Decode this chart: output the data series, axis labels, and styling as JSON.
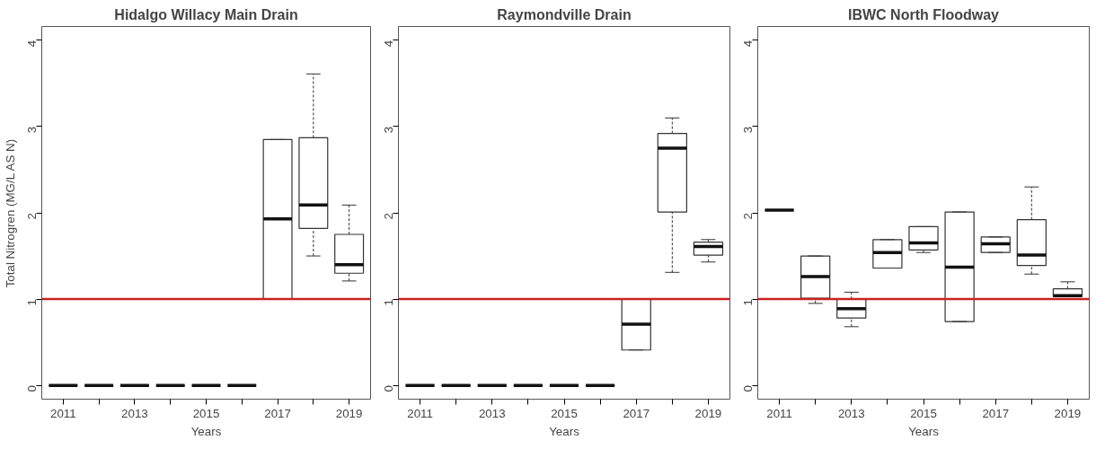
{
  "chart_data": [
    {
      "type": "box",
      "title": "Hidalgo Willacy Main Drain",
      "xlabel": "Years",
      "ylabel": "Total Nitrogren (MG/L AS N)",
      "categories": [
        "2011",
        null,
        "2013",
        null,
        "2015",
        null,
        "2017",
        null,
        "2019"
      ],
      "ylim": [
        -0.16,
        4.16
      ],
      "yticks": [
        0,
        1,
        2,
        3,
        4
      ],
      "grid": false,
      "ref_lines": [
        {
          "axis": "y",
          "value": 1,
          "color": "#cc2222"
        }
      ],
      "boxes": [
        {
          "low": 0,
          "q1": 0,
          "median": 0,
          "q3": 0,
          "high": 0
        },
        {
          "low": 0,
          "q1": 0,
          "median": 0,
          "q3": 0,
          "high": 0
        },
        {
          "low": 0,
          "q1": 0,
          "median": 0,
          "q3": 0,
          "high": 0
        },
        {
          "low": 0,
          "q1": 0,
          "median": 0,
          "q3": 0,
          "high": 0
        },
        {
          "low": 0,
          "q1": 0,
          "median": 0,
          "q3": 0,
          "high": 0
        },
        {
          "low": 0,
          "q1": 0,
          "median": 0,
          "q3": 0,
          "high": 0
        },
        {
          "low": 1.0,
          "q1": 1.0,
          "median": 1.93,
          "q3": 2.85,
          "high": 2.85
        },
        {
          "low": 1.5,
          "q1": 1.82,
          "median": 2.09,
          "q3": 2.87,
          "high": 3.61
        },
        {
          "low": 1.21,
          "q1": 1.3,
          "median": 1.4,
          "q3": 1.75,
          "high": 2.09
        }
      ]
    },
    {
      "type": "box",
      "title": "Raymondville Drain",
      "xlabel": "Years",
      "categories": [
        "2011",
        null,
        "2013",
        null,
        "2015",
        null,
        "2017",
        null,
        "2019"
      ],
      "ylim": [
        -0.16,
        4.16
      ],
      "yticks": [
        0,
        1,
        2,
        3,
        4
      ],
      "grid": false,
      "ref_lines": [
        {
          "axis": "y",
          "value": 1,
          "color": "#cc2222"
        }
      ],
      "boxes": [
        {
          "low": 0,
          "q1": 0,
          "median": 0,
          "q3": 0,
          "high": 0
        },
        {
          "low": 0,
          "q1": 0,
          "median": 0,
          "q3": 0,
          "high": 0
        },
        {
          "low": 0,
          "q1": 0,
          "median": 0,
          "q3": 0,
          "high": 0
        },
        {
          "low": 0,
          "q1": 0,
          "median": 0,
          "q3": 0,
          "high": 0
        },
        {
          "low": 0,
          "q1": 0,
          "median": 0,
          "q3": 0,
          "high": 0
        },
        {
          "low": 0,
          "q1": 0,
          "median": 0,
          "q3": 0,
          "high": 0
        },
        {
          "low": 0.41,
          "q1": 0.41,
          "median": 0.71,
          "q3": 1.0,
          "high": 1.0
        },
        {
          "low": 1.31,
          "q1": 2.01,
          "median": 2.75,
          "q3": 2.92,
          "high": 3.1
        },
        {
          "low": 1.43,
          "q1": 1.51,
          "median": 1.61,
          "q3": 1.66,
          "high": 1.69
        }
      ]
    },
    {
      "type": "box",
      "title": "IBWC North Floodway",
      "xlabel": "Years",
      "categories": [
        "2011",
        null,
        "2013",
        null,
        "2015",
        null,
        "2017",
        null,
        "2019"
      ],
      "ylim": [
        -0.16,
        4.16
      ],
      "yticks": [
        0,
        1,
        2,
        3,
        4
      ],
      "grid": false,
      "ref_lines": [
        {
          "axis": "y",
          "value": 1,
          "color": "#cc2222"
        }
      ],
      "boxes": [
        {
          "low": 2.03,
          "q1": 2.03,
          "median": 2.03,
          "q3": 2.03,
          "high": 2.03
        },
        {
          "low": 0.95,
          "q1": 1.01,
          "median": 1.26,
          "q3": 1.5,
          "high": 1.5
        },
        {
          "low": 0.68,
          "q1": 0.78,
          "median": 0.89,
          "q3": 1.0,
          "high": 1.08
        },
        {
          "low": 1.36,
          "q1": 1.36,
          "median": 1.54,
          "q3": 1.69,
          "high": 1.69
        },
        {
          "low": 1.54,
          "q1": 1.57,
          "median": 1.65,
          "q3": 1.84,
          "high": 1.84
        },
        {
          "low": 0.74,
          "q1": 0.74,
          "median": 1.37,
          "q3": 2.01,
          "high": 2.01
        },
        {
          "low": 1.54,
          "q1": 1.54,
          "median": 1.64,
          "q3": 1.72,
          "high": 1.72
        },
        {
          "low": 1.29,
          "q1": 1.39,
          "median": 1.51,
          "q3": 1.92,
          "high": 2.3
        },
        {
          "low": 1.03,
          "q1": 1.03,
          "median": 1.04,
          "q3": 1.12,
          "high": 1.2
        }
      ]
    }
  ]
}
